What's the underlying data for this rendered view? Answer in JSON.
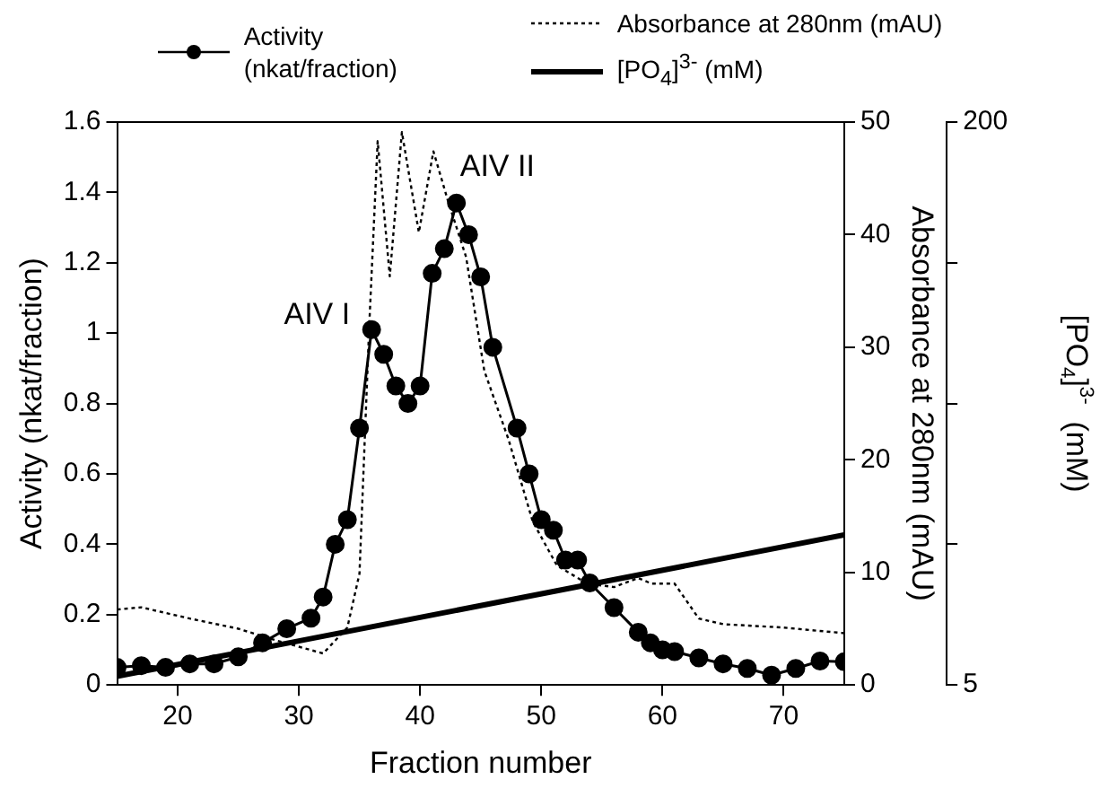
{
  "chart_data": {
    "type": "line",
    "xlabel": "Fraction number",
    "ylabel": "Activity (nkat/fraction)",
    "y2label": "Absorbance at 280nm (mAU)",
    "y3label": "[PO$_{4}$]$^{3-}$  (mM)",
    "xlim": [
      15,
      75
    ],
    "xticks": [
      20,
      30,
      40,
      50,
      60,
      70
    ],
    "ylim": [
      0,
      1.6
    ],
    "yticks": [
      0,
      0.2,
      0.4,
      0.6,
      0.8,
      1.0,
      1.2,
      1.4,
      1.6
    ],
    "y2lim": [
      0,
      50
    ],
    "y2ticks": [
      0,
      10,
      20,
      30,
      40,
      50
    ],
    "y3lim": [
      5,
      200
    ],
    "y3ticks": [
      5,
      {
        "value": 53.75,
        "label": null
      },
      {
        "value": 102.5,
        "label": null
      },
      {
        "value": 151.25,
        "label": null
      },
      200
    ],
    "grid": false,
    "legend": "top",
    "series": [
      {
        "name": "Activity (nkat/fraction)",
        "color": "#000000",
        "marker": "circle",
        "line_style": "solid",
        "x": [
          15,
          17,
          19,
          21,
          23,
          25,
          27,
          29,
          31,
          32,
          33,
          34,
          35,
          36,
          37,
          38,
          39,
          40,
          41,
          42,
          43,
          44,
          45,
          46,
          48,
          49,
          50,
          51,
          52,
          53,
          54,
          56,
          58,
          59,
          60,
          61,
          63,
          65,
          67,
          69,
          71,
          73,
          75
        ],
        "values": [
          0.05,
          0.055,
          0.05,
          0.06,
          0.06,
          0.08,
          0.12,
          0.16,
          0.19,
          0.25,
          0.4,
          0.47,
          0.73,
          1.01,
          0.94,
          0.85,
          0.8,
          0.85,
          1.17,
          1.24,
          1.37,
          1.28,
          1.16,
          0.96,
          0.73,
          0.6,
          0.47,
          0.44,
          0.355,
          0.355,
          0.29,
          0.22,
          0.15,
          0.12,
          0.1,
          0.095,
          0.077,
          0.06,
          0.047,
          0.028,
          0.047,
          0.068,
          0.066
        ]
      },
      {
        "name": "Absorbance at 280nm (mAU)",
        "color": "#000000",
        "marker": "none",
        "line_style": "dotted",
        "axis": "y2",
        "x": [
          15,
          17,
          21,
          25,
          28,
          32,
          34,
          35,
          35.8,
          36.5,
          37.5,
          38.5,
          39.9,
          41.1,
          42.3,
          43.8,
          45.3,
          47.3,
          49.3,
          51.3,
          53.8,
          56,
          58,
          59.1,
          61,
          63,
          65,
          70,
          75
        ],
        "values": [
          6.7,
          6.9,
          5.9,
          5,
          4,
          2.8,
          5.1,
          9.9,
          31.8,
          48.3,
          36.3,
          49.1,
          40.2,
          47.4,
          43,
          38,
          27.9,
          21.8,
          14.5,
          10.6,
          9,
          8.7,
          9.5,
          9,
          9,
          5.9,
          5.4,
          5.1,
          4.6
        ]
      },
      {
        "name": "[PO$_{4}$]$^{3-}$  (mM)",
        "color": "#000000",
        "marker": "none",
        "line_style": "solid",
        "axis": "y3",
        "x": [
          15,
          75
        ],
        "values": [
          8,
          57
        ]
      }
    ],
    "annotations": [
      {
        "text": "AIV I",
        "x": 36,
        "y": 1.01
      },
      {
        "text": "AIV II",
        "x": 43,
        "y": 1.37
      }
    ]
  }
}
